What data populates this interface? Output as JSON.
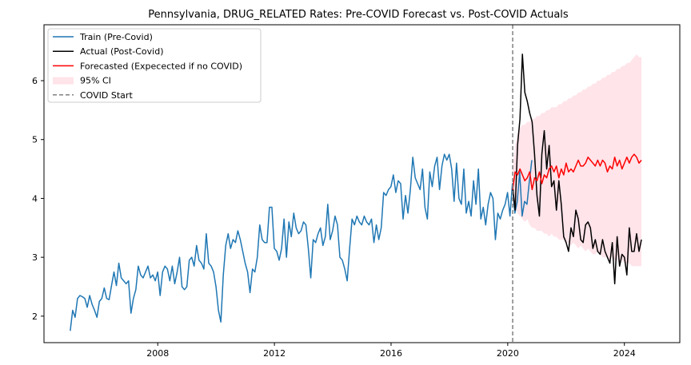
{
  "chart_data": {
    "type": "line",
    "title": "Pennsylvania, DRUG_RELATED Rates: Pre-COVID Forecast vs. Post-COVID Actuals",
    "xlabel": "",
    "ylabel": "",
    "xlim": [
      2004.1,
      2025.9
    ],
    "ylim": [
      1.55,
      6.95
    ],
    "x_ticks": [
      "2008",
      "2012",
      "2016",
      "2020",
      "2024"
    ],
    "y_ticks": [
      "2",
      "3",
      "4",
      "5",
      "6"
    ],
    "grid": false,
    "legend_position": "top-left",
    "covid_start": 2020.17,
    "colors": {
      "train": "#1f77b4",
      "actual": "#000000",
      "forecast": "#ff0000",
      "ci": "#ffe4ea",
      "covid_line": "#808080"
    },
    "legend": [
      {
        "label": "Train (Pre-Covid)",
        "kind": "line",
        "color": "#1f77b4"
      },
      {
        "label": "Actual (Post-Covid)",
        "kind": "line",
        "color": "#000000"
      },
      {
        "label": "Forecasted (Expecected if no COVID)",
        "kind": "line",
        "color": "#ff0000"
      },
      {
        "label": "95% CI",
        "kind": "patch",
        "color": "#ffe4ea"
      },
      {
        "label": "COVID Start",
        "kind": "dashed",
        "color": "#808080"
      }
    ],
    "series": [
      {
        "name": "Train (Pre-Covid)",
        "x_start": 2005.0,
        "step": 0.0833,
        "values": [
          1.75,
          2.1,
          1.98,
          2.3,
          2.35,
          2.33,
          2.3,
          2.15,
          2.35,
          2.2,
          2.1,
          1.98,
          2.25,
          2.3,
          2.48,
          2.3,
          2.28,
          2.52,
          2.75,
          2.52,
          2.9,
          2.65,
          2.6,
          2.55,
          2.6,
          2.05,
          2.3,
          2.45,
          2.85,
          2.7,
          2.65,
          2.75,
          2.85,
          2.65,
          2.7,
          2.6,
          2.75,
          2.35,
          2.75,
          2.85,
          2.8,
          2.6,
          2.85,
          2.55,
          2.75,
          3.0,
          2.5,
          2.45,
          2.5,
          2.95,
          3.0,
          2.85,
          3.2,
          2.95,
          2.9,
          2.8,
          3.4,
          2.9,
          2.85,
          2.75,
          2.5,
          2.1,
          1.9,
          2.7,
          3.2,
          3.4,
          3.15,
          3.3,
          3.25,
          3.45,
          3.3,
          3.1,
          2.9,
          2.75,
          2.4,
          2.8,
          2.75,
          3.0,
          3.55,
          3.3,
          3.25,
          3.25,
          3.85,
          3.85,
          3.15,
          3.1,
          2.95,
          3.15,
          3.65,
          3.0,
          3.6,
          3.35,
          3.75,
          3.5,
          3.4,
          3.45,
          3.6,
          3.55,
          3.15,
          2.65,
          3.3,
          3.25,
          3.4,
          3.5,
          3.2,
          3.35,
          3.9,
          3.3,
          3.45,
          3.7,
          3.55,
          3.0,
          2.95,
          2.8,
          2.6,
          3.15,
          3.65,
          3.55,
          3.7,
          3.6,
          3.55,
          3.7,
          3.6,
          3.55,
          3.65,
          3.25,
          3.55,
          3.3,
          3.5,
          4.1,
          4.05,
          4.15,
          4.2,
          4.4,
          4.1,
          4.3,
          4.25,
          3.65,
          4.05,
          3.75,
          4.15,
          4.7,
          4.35,
          4.25,
          4.15,
          4.5,
          3.85,
          3.65,
          4.45,
          4.2,
          4.55,
          4.7,
          4.15,
          4.55,
          4.75,
          4.65,
          4.75,
          4.5,
          3.95,
          4.6,
          4.0,
          3.9,
          4.5,
          3.75,
          3.95,
          3.7,
          4.3,
          3.9,
          4.5,
          3.65,
          3.85,
          3.55,
          3.9,
          4.1,
          4.0,
          3.3,
          3.75,
          3.65,
          3.8,
          3.9,
          4.1,
          3.7,
          4.25,
          3.75,
          3.95,
          4.45,
          3.7,
          3.95,
          3.9,
          4.3,
          4.65
        ]
      },
      {
        "name": "Actual (Post-Covid)",
        "x_start": 2020.17,
        "step": 0.0833,
        "values": [
          4.2,
          3.8,
          4.9,
          5.35,
          6.45,
          5.8,
          5.65,
          5.45,
          5.3,
          4.75,
          4.05,
          3.7,
          4.75,
          5.15,
          4.5,
          4.9,
          4.2,
          4.3,
          3.8,
          4.3,
          3.9,
          3.35,
          3.25,
          3.1,
          3.5,
          3.35,
          3.8,
          3.65,
          3.3,
          3.25,
          3.55,
          3.6,
          3.5,
          3.15,
          3.3,
          3.1,
          3.05,
          3.3,
          3.1,
          3.0,
          2.9,
          3.25,
          2.55,
          3.35,
          2.85,
          3.05,
          3.0,
          2.7,
          3.5,
          3.1,
          3.1,
          3.4,
          3.1,
          3.3
        ]
      },
      {
        "name": "Forecasted (Expecected if no COVID)",
        "x_start": 2020.17,
        "step": 0.0833,
        "values": [
          4.15,
          4.45,
          4.4,
          4.5,
          4.4,
          4.3,
          4.35,
          4.45,
          4.15,
          4.35,
          4.3,
          4.45,
          4.25,
          4.4,
          4.35,
          4.5,
          4.55,
          4.45,
          4.55,
          4.35,
          4.5,
          4.4,
          4.6,
          4.45,
          4.5,
          4.45,
          4.55,
          4.65,
          4.55,
          4.55,
          4.6,
          4.7,
          4.65,
          4.6,
          4.55,
          4.65,
          4.55,
          4.65,
          4.6,
          4.45,
          4.55,
          4.5,
          4.7,
          4.55,
          4.65,
          4.5,
          4.6,
          4.7,
          4.6,
          4.7,
          4.75,
          4.7,
          4.6,
          4.65
        ]
      }
    ],
    "ci_band": {
      "name": "95% CI",
      "x_start": 2020.17,
      "step": 0.0833,
      "lower": [
        3.9,
        3.85,
        3.75,
        3.7,
        3.65,
        3.6,
        3.65,
        3.55,
        3.5,
        3.5,
        3.45,
        3.45,
        3.45,
        3.4,
        3.4,
        3.35,
        3.4,
        3.35,
        3.35,
        3.3,
        3.3,
        3.3,
        3.25,
        3.25,
        3.2,
        3.25,
        3.2,
        3.15,
        3.2,
        3.15,
        3.1,
        3.15,
        3.1,
        3.05,
        3.05,
        3.1,
        3.05,
        3.0,
        3.0,
        3.0,
        2.95,
        3.0,
        2.95,
        2.95,
        2.9,
        2.95,
        2.9,
        2.9,
        2.9,
        2.85,
        2.85,
        2.85,
        2.85,
        2.85
      ],
      "upper": [
        4.5,
        4.9,
        5.1,
        5.2,
        5.25,
        5.25,
        5.3,
        5.3,
        5.35,
        5.35,
        5.4,
        5.4,
        5.45,
        5.45,
        5.5,
        5.5,
        5.55,
        5.55,
        5.55,
        5.6,
        5.6,
        5.65,
        5.65,
        5.7,
        5.7,
        5.75,
        5.75,
        5.8,
        5.8,
        5.85,
        5.85,
        5.9,
        5.9,
        5.95,
        5.95,
        6.0,
        6.0,
        6.05,
        6.05,
        6.1,
        6.1,
        6.15,
        6.15,
        6.2,
        6.2,
        6.25,
        6.25,
        6.3,
        6.3,
        6.35,
        6.4,
        6.45,
        6.4,
        6.4
      ]
    }
  }
}
